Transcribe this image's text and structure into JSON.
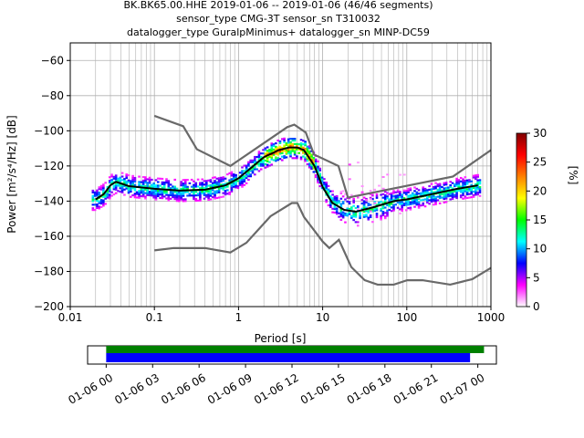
{
  "title_lines": [
    "BK.BK65.00.HHE   2019-01-06 -- 2019-01-06  (46/46 segments)",
    "sensor_type CMG-3T sensor_sn T310032",
    "datalogger_type GuralpMinimus+ datalogger_sn MINP-DC59"
  ],
  "chart_data": [
    {
      "type": "heatmap",
      "name": "ppsd",
      "xlabel": "Period [s]",
      "ylabel": "Power [m²/s⁴/Hz] [dB]",
      "xscale": "log",
      "xlim": [
        0.01,
        1000
      ],
      "ylim": [
        -200,
        -50
      ],
      "xticks": [
        0.01,
        0.1,
        1,
        10,
        100,
        1000
      ],
      "xticklabels": [
        "0.01",
        "0.1",
        "1",
        "10",
        "100",
        "1000"
      ],
      "yticks": [
        -200,
        -180,
        -160,
        -140,
        -120,
        -100,
        -80,
        -60
      ],
      "yticklabels": [
        "−200",
        "−180",
        "−160",
        "−140",
        "−120",
        "−100",
        "−80",
        "−60"
      ],
      "grid": true,
      "colorbar": {
        "label": "[%]",
        "range": [
          0,
          30
        ],
        "ticks": [
          0,
          5,
          10,
          15,
          20,
          25,
          30
        ],
        "colormap": [
          "#ffffff",
          "#ff00ff",
          "#0000ff",
          "#00ffff",
          "#00ff00",
          "#ffff00",
          "#ff8000",
          "#ff0000",
          "#800000"
        ]
      },
      "noise_models": [
        {
          "name": "NHNM",
          "color": "#696969",
          "points": [
            [
              0.1,
              -91.5
            ],
            [
              0.22,
              -97.4
            ],
            [
              0.32,
              -110.5
            ],
            [
              0.8,
              -120
            ],
            [
              3.8,
              -97.9
            ],
            [
              4.6,
              -96.5
            ],
            [
              6.3,
              -101
            ],
            [
              7.9,
              -113.5
            ],
            [
              15.4,
              -120
            ],
            [
              20,
              -138
            ],
            [
              354,
              -126
            ],
            [
              1000,
              -111
            ]
          ]
        },
        {
          "name": "NLNM",
          "color": "#696969",
          "points": [
            [
              0.1,
              -168
            ],
            [
              0.17,
              -166.7
            ],
            [
              0.4,
              -166.7
            ],
            [
              0.8,
              -169.2
            ],
            [
              1.24,
              -163.7
            ],
            [
              2.4,
              -148.6
            ],
            [
              4.3,
              -141.1
            ],
            [
              5,
              -141.1
            ],
            [
              6,
              -149
            ],
            [
              10,
              -163
            ],
            [
              12,
              -166.7
            ],
            [
              15.6,
              -162
            ],
            [
              21.9,
              -177.5
            ],
            [
              31.6,
              -185
            ],
            [
              45,
              -187.5
            ],
            [
              70,
              -187.5
            ],
            [
              101,
              -185
            ],
            [
              154,
              -185
            ],
            [
              328,
              -187.5
            ],
            [
              600,
              -184.4
            ],
            [
              1000,
              -178
            ]
          ]
        }
      ],
      "median": {
        "color": "#000000",
        "points": [
          [
            0.02,
            -139
          ],
          [
            0.025,
            -136
          ],
          [
            0.03,
            -131
          ],
          [
            0.035,
            -129
          ],
          [
            0.05,
            -131.5
          ],
          [
            0.1,
            -133
          ],
          [
            0.2,
            -134
          ],
          [
            0.4,
            -133.5
          ],
          [
            0.7,
            -131
          ],
          [
            1,
            -127
          ],
          [
            1.5,
            -120
          ],
          [
            2,
            -115
          ],
          [
            3,
            -111
          ],
          [
            4,
            -109.5
          ],
          [
            5,
            -109.5
          ],
          [
            6,
            -111
          ],
          [
            8,
            -120
          ],
          [
            10,
            -132
          ],
          [
            13,
            -141
          ],
          [
            18,
            -145
          ],
          [
            25,
            -146
          ],
          [
            40,
            -143.5
          ],
          [
            70,
            -140
          ],
          [
            100,
            -139
          ],
          [
            200,
            -136
          ],
          [
            400,
            -133
          ],
          [
            700,
            -131
          ]
        ]
      },
      "segments": 46
    },
    {
      "type": "timeline",
      "name": "data-coverage",
      "xticklabels": [
        "01-06 00",
        "01-06 03",
        "01-06 06",
        "01-06 09",
        "01-06 12",
        "01-06 15",
        "01-06 18",
        "01-06 21",
        "01-07 00"
      ],
      "bars": [
        {
          "name": "availability",
          "color": "#008000",
          "start_h": 0,
          "end_h": 24.4
        },
        {
          "name": "psd-segments",
          "color": "#0000ff",
          "start_h": 0,
          "end_h": 23.5
        }
      ],
      "xlim_h": [
        -1.2,
        25.2
      ]
    }
  ]
}
